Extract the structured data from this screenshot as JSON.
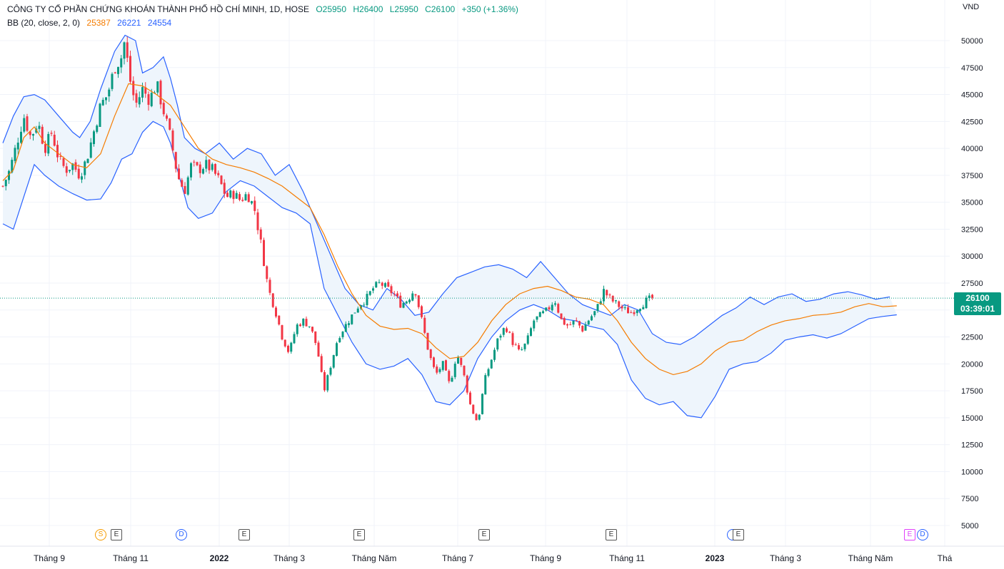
{
  "header": {
    "symbol_line": "CÔNG TY CỔ PHẦN CHỨNG KHOÁN THÀNH PHỐ HỒ CHÍ MINH, 1D, HOSE",
    "open": "O25950",
    "high": "H26400",
    "low": "L25950",
    "close": "C26100",
    "change": "+350 (+1.36%)",
    "indicator_name": "BB (20, close, 2, 0)",
    "bb_basis": "25387",
    "bb_upper": "26221",
    "bb_lower": "24554"
  },
  "price_axis": {
    "unit": "VND",
    "last_price": "26100",
    "countdown": "03:39:01"
  },
  "colors": {
    "up": "#089981",
    "down": "#f23645",
    "basis": "#f57c00",
    "bands": "#2962ff",
    "fill": "#eef5fc"
  },
  "events": [
    {
      "label": "S",
      "kind": "s"
    },
    {
      "label": "E",
      "kind": "e"
    },
    {
      "label": "D",
      "kind": "d"
    },
    {
      "label": "E",
      "kind": "e"
    },
    {
      "label": "E",
      "kind": "e"
    },
    {
      "label": "E",
      "kind": "e"
    },
    {
      "label": "E",
      "kind": "e"
    },
    {
      "label": "",
      "kind": "d"
    },
    {
      "label": "E",
      "kind": "e"
    },
    {
      "label": "E",
      "kind": "pe"
    },
    {
      "label": "D",
      "kind": "d"
    }
  ],
  "chart_data": {
    "type": "candlestick",
    "title": "CÔNG TY CỔ PHẦN CHỨNG KHOÁN THÀNH PHỐ HỒ CHÍ MINH, 1D, HOSE",
    "ylim": [
      3500,
      52500
    ],
    "y_ticks": [
      "50000",
      "47500",
      "45000",
      "42500",
      "40000",
      "37500",
      "35000",
      "32500",
      "30000",
      "27500",
      "25000",
      "22500",
      "20000",
      "17500",
      "15000",
      "12500",
      "10000",
      "7500",
      "5000"
    ],
    "x_tick_labels": [
      "Tháng 9",
      "Tháng 11",
      "2022",
      "Tháng 3",
      "Tháng Năm",
      "Tháng 7",
      "Tháng 9",
      "Tháng 11",
      "2023",
      "Tháng 3",
      "Tháng Năm",
      "Thá"
    ],
    "grid": true,
    "last_close": 26100,
    "basis_path": [
      [
        0,
        37000
      ],
      [
        0.03,
        38000
      ],
      [
        0.06,
        41000
      ],
      [
        0.09,
        42000
      ],
      [
        0.12,
        40500
      ],
      [
        0.16,
        39500
      ],
      [
        0.2,
        38500
      ],
      [
        0.24,
        38200
      ],
      [
        0.28,
        39500
      ],
      [
        0.32,
        43000
      ],
      [
        0.36,
        46000
      ],
      [
        0.4,
        45800
      ],
      [
        0.44,
        45000
      ],
      [
        0.48,
        44000
      ],
      [
        0.52,
        42000
      ],
      [
        0.56,
        40000
      ],
      [
        0.6,
        39000
      ],
      [
        0.64,
        38500
      ],
      [
        0.68,
        38200
      ],
      [
        0.72,
        37800
      ],
      [
        0.76,
        37200
      ],
      [
        0.8,
        36500
      ],
      [
        0.84,
        35500
      ],
      [
        0.88,
        34500
      ],
      [
        0.92,
        32000
      ],
      [
        0.96,
        29000
      ],
      [
        1.0,
        26500
      ],
      [
        1.04,
        24500
      ],
      [
        1.08,
        23500
      ],
      [
        1.12,
        23200
      ],
      [
        1.16,
        23300
      ],
      [
        1.2,
        22800
      ],
      [
        1.24,
        21500
      ],
      [
        1.28,
        20500
      ],
      [
        1.32,
        20700
      ],
      [
        1.36,
        22000
      ],
      [
        1.4,
        24000
      ],
      [
        1.44,
        25500
      ],
      [
        1.48,
        26500
      ],
      [
        1.52,
        27000
      ],
      [
        1.56,
        27200
      ],
      [
        1.6,
        26800
      ],
      [
        1.64,
        26200
      ],
      [
        1.68,
        26000
      ],
      [
        1.72,
        25500
      ],
      [
        1.76,
        24000
      ],
      [
        1.8,
        22000
      ],
      [
        1.84,
        20500
      ],
      [
        1.88,
        19500
      ],
      [
        1.92,
        19000
      ],
      [
        1.96,
        19300
      ],
      [
        2.0,
        20000
      ],
      [
        2.04,
        21200
      ],
      [
        2.08,
        22000
      ],
      [
        2.12,
        22200
      ],
      [
        2.16,
        23000
      ],
      [
        2.2,
        23600
      ],
      [
        2.24,
        24000
      ],
      [
        2.28,
        24200
      ],
      [
        2.32,
        24500
      ],
      [
        2.36,
        24600
      ],
      [
        2.4,
        24800
      ],
      [
        2.44,
        25300
      ],
      [
        2.48,
        25600
      ],
      [
        2.52,
        25300
      ],
      [
        2.56,
        25387
      ]
    ],
    "upper_path": [
      [
        0,
        40500
      ],
      [
        0.03,
        43000
      ],
      [
        0.06,
        44800
      ],
      [
        0.09,
        45000
      ],
      [
        0.12,
        44500
      ],
      [
        0.16,
        43000
      ],
      [
        0.2,
        41500
      ],
      [
        0.22,
        41000
      ],
      [
        0.25,
        42500
      ],
      [
        0.28,
        45500
      ],
      [
        0.32,
        49000
      ],
      [
        0.35,
        50500
      ],
      [
        0.38,
        50000
      ],
      [
        0.4,
        47000
      ],
      [
        0.43,
        47500
      ],
      [
        0.46,
        48500
      ],
      [
        0.48,
        46500
      ],
      [
        0.5,
        44000
      ],
      [
        0.52,
        41000
      ],
      [
        0.55,
        40000
      ],
      [
        0.58,
        39500
      ],
      [
        0.62,
        40500
      ],
      [
        0.66,
        39000
      ],
      [
        0.7,
        40000
      ],
      [
        0.74,
        39500
      ],
      [
        0.78,
        37500
      ],
      [
        0.82,
        38500
      ],
      [
        0.86,
        36000
      ],
      [
        0.9,
        33000
      ],
      [
        0.94,
        30000
      ],
      [
        0.98,
        27000
      ],
      [
        1.02,
        25500
      ],
      [
        1.06,
        25000
      ],
      [
        1.1,
        27000
      ],
      [
        1.14,
        26000
      ],
      [
        1.18,
        24500
      ],
      [
        1.22,
        24800
      ],
      [
        1.26,
        26500
      ],
      [
        1.3,
        28000
      ],
      [
        1.34,
        28500
      ],
      [
        1.38,
        29000
      ],
      [
        1.42,
        29200
      ],
      [
        1.46,
        28800
      ],
      [
        1.5,
        28000
      ],
      [
        1.54,
        29500
      ],
      [
        1.58,
        28000
      ],
      [
        1.62,
        26500
      ],
      [
        1.66,
        25500
      ],
      [
        1.7,
        25000
      ],
      [
        1.74,
        24500
      ],
      [
        1.78,
        25500
      ],
      [
        1.82,
        25000
      ],
      [
        1.86,
        22800
      ],
      [
        1.9,
        22000
      ],
      [
        1.94,
        21800
      ],
      [
        1.98,
        22500
      ],
      [
        2.02,
        23500
      ],
      [
        2.06,
        24500
      ],
      [
        2.1,
        25200
      ],
      [
        2.14,
        26200
      ],
      [
        2.18,
        25500
      ],
      [
        2.22,
        26200
      ],
      [
        2.26,
        26500
      ],
      [
        2.3,
        25800
      ],
      [
        2.34,
        26000
      ],
      [
        2.38,
        26500
      ],
      [
        2.42,
        26700
      ],
      [
        2.46,
        26400
      ],
      [
        2.5,
        26000
      ],
      [
        2.54,
        26221
      ]
    ],
    "lower_path": [
      [
        0,
        33000
      ],
      [
        0.03,
        32500
      ],
      [
        0.06,
        35500
      ],
      [
        0.09,
        38500
      ],
      [
        0.12,
        37500
      ],
      [
        0.16,
        36500
      ],
      [
        0.2,
        35800
      ],
      [
        0.24,
        35200
      ],
      [
        0.28,
        35300
      ],
      [
        0.31,
        36800
      ],
      [
        0.34,
        39000
      ],
      [
        0.37,
        39500
      ],
      [
        0.4,
        41500
      ],
      [
        0.43,
        42500
      ],
      [
        0.46,
        42000
      ],
      [
        0.48,
        40500
      ],
      [
        0.5,
        38000
      ],
      [
        0.53,
        34500
      ],
      [
        0.56,
        33500
      ],
      [
        0.6,
        34000
      ],
      [
        0.64,
        36000
      ],
      [
        0.68,
        37000
      ],
      [
        0.72,
        36500
      ],
      [
        0.76,
        35500
      ],
      [
        0.8,
        34500
      ],
      [
        0.84,
        34000
      ],
      [
        0.88,
        33000
      ],
      [
        0.92,
        27000
      ],
      [
        0.96,
        24500
      ],
      [
        1.0,
        22000
      ],
      [
        1.04,
        20000
      ],
      [
        1.08,
        19500
      ],
      [
        1.12,
        19800
      ],
      [
        1.16,
        20500
      ],
      [
        1.2,
        19000
      ],
      [
        1.24,
        16500
      ],
      [
        1.28,
        16200
      ],
      [
        1.32,
        17500
      ],
      [
        1.36,
        20500
      ],
      [
        1.4,
        22500
      ],
      [
        1.44,
        24000
      ],
      [
        1.48,
        25000
      ],
      [
        1.52,
        25500
      ],
      [
        1.56,
        25000
      ],
      [
        1.6,
        24200
      ],
      [
        1.64,
        24000
      ],
      [
        1.68,
        23500
      ],
      [
        1.72,
        23200
      ],
      [
        1.76,
        21800
      ],
      [
        1.8,
        18500
      ],
      [
        1.84,
        16800
      ],
      [
        1.88,
        16200
      ],
      [
        1.92,
        16500
      ],
      [
        1.96,
        15200
      ],
      [
        2.0,
        15000
      ],
      [
        2.04,
        17000
      ],
      [
        2.08,
        19500
      ],
      [
        2.12,
        20000
      ],
      [
        2.16,
        20200
      ],
      [
        2.2,
        21000
      ],
      [
        2.24,
        22200
      ],
      [
        2.28,
        22500
      ],
      [
        2.32,
        22700
      ],
      [
        2.36,
        22400
      ],
      [
        2.4,
        22800
      ],
      [
        2.44,
        23500
      ],
      [
        2.48,
        24200
      ],
      [
        2.52,
        24400
      ],
      [
        2.56,
        24554
      ]
    ],
    "price_path": [
      [
        0,
        36500
      ],
      [
        0.02,
        38000
      ],
      [
        0.04,
        40500
      ],
      [
        0.06,
        43000
      ],
      [
        0.08,
        41000
      ],
      [
        0.1,
        42500
      ],
      [
        0.12,
        40000
      ],
      [
        0.14,
        41500
      ],
      [
        0.16,
        39000
      ],
      [
        0.18,
        38000
      ],
      [
        0.2,
        38500
      ],
      [
        0.22,
        37500
      ],
      [
        0.24,
        39000
      ],
      [
        0.26,
        41500
      ],
      [
        0.28,
        44000
      ],
      [
        0.3,
        45000
      ],
      [
        0.32,
        47500
      ],
      [
        0.34,
        48500
      ],
      [
        0.35,
        50200
      ],
      [
        0.36,
        47000
      ],
      [
        0.38,
        44000
      ],
      [
        0.4,
        45500
      ],
      [
        0.42,
        44500
      ],
      [
        0.44,
        46000
      ],
      [
        0.46,
        43500
      ],
      [
        0.48,
        41000
      ],
      [
        0.5,
        37500
      ],
      [
        0.52,
        36000
      ],
      [
        0.54,
        38500
      ],
      [
        0.56,
        38000
      ],
      [
        0.58,
        38500
      ],
      [
        0.6,
        38000
      ],
      [
        0.62,
        37000
      ],
      [
        0.64,
        35500
      ],
      [
        0.66,
        35800
      ],
      [
        0.68,
        35200
      ],
      [
        0.7,
        35800
      ],
      [
        0.72,
        34500
      ],
      [
        0.74,
        31000
      ],
      [
        0.76,
        27000
      ],
      [
        0.78,
        25000
      ],
      [
        0.8,
        22500
      ],
      [
        0.82,
        21000
      ],
      [
        0.84,
        23500
      ],
      [
        0.86,
        24000
      ],
      [
        0.88,
        23500
      ],
      [
        0.9,
        21500
      ],
      [
        0.92,
        17500
      ],
      [
        0.94,
        20000
      ],
      [
        0.96,
        22500
      ],
      [
        0.98,
        23500
      ],
      [
        1.0,
        24500
      ],
      [
        1.02,
        25500
      ],
      [
        1.04,
        26000
      ],
      [
        1.06,
        27000
      ],
      [
        1.08,
        27500
      ],
      [
        1.1,
        27000
      ],
      [
        1.12,
        26500
      ],
      [
        1.14,
        25500
      ],
      [
        1.16,
        26000
      ],
      [
        1.18,
        27000
      ],
      [
        1.2,
        24000
      ],
      [
        1.22,
        21000
      ],
      [
        1.24,
        19000
      ],
      [
        1.26,
        20000
      ],
      [
        1.28,
        18000
      ],
      [
        1.3,
        21000
      ],
      [
        1.32,
        19000
      ],
      [
        1.34,
        16000
      ],
      [
        1.36,
        14500
      ],
      [
        1.38,
        18500
      ],
      [
        1.4,
        20500
      ],
      [
        1.42,
        22500
      ],
      [
        1.44,
        23500
      ],
      [
        1.46,
        22000
      ],
      [
        1.48,
        21000
      ],
      [
        1.5,
        22000
      ],
      [
        1.52,
        24000
      ],
      [
        1.54,
        24500
      ],
      [
        1.56,
        25000
      ],
      [
        1.58,
        26000
      ],
      [
        1.6,
        24000
      ],
      [
        1.62,
        23500
      ],
      [
        1.64,
        24000
      ],
      [
        1.66,
        23200
      ],
      [
        1.68,
        24200
      ],
      [
        1.7,
        25000
      ],
      [
        1.72,
        26800
      ],
      [
        1.74,
        26000
      ],
      [
        1.76,
        25500
      ],
      [
        1.78,
        25000
      ],
      [
        1.8,
        24800
      ],
      [
        1.82,
        25300
      ],
      [
        1.84,
        25800
      ],
      [
        1.86,
        26100
      ]
    ]
  }
}
